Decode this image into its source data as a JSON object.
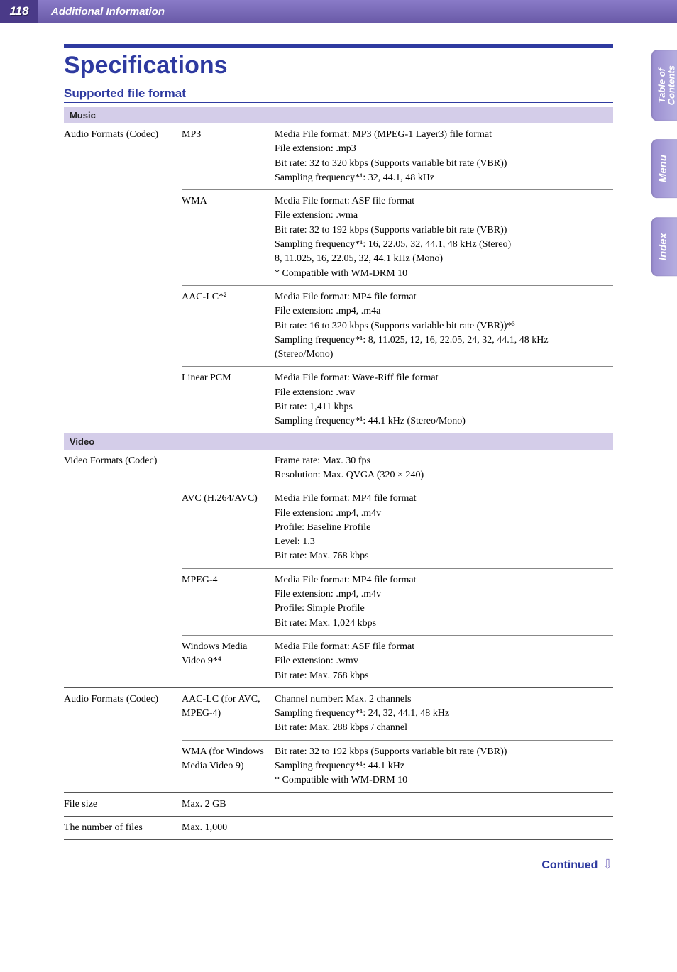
{
  "header": {
    "page_number": "118",
    "section": "Additional Information"
  },
  "side_tabs": [
    {
      "lines": [
        "Table of",
        "Contents"
      ],
      "two_line": true
    },
    {
      "lines": [
        "Menu"
      ],
      "two_line": false
    },
    {
      "lines": [
        "Index"
      ],
      "two_line": false
    }
  ],
  "title": "Specifications",
  "subheading": "Supported file format",
  "sections": [
    {
      "band": "Music",
      "rows": [
        {
          "a": "Audio Formats (Codec)",
          "b": "MP3",
          "c": "Media File format: MP3 (MPEG-1 Layer3) file format\nFile extension: .mp3\nBit rate: 32 to 320 kbps (Supports variable bit rate (VBR))\nSampling frequency*¹: 32, 44.1, 48 kHz",
          "top_rule": false
        },
        {
          "a": "",
          "b": "WMA",
          "c": "Media File format: ASF file format\nFile extension: .wma\nBit rate: 32 to 192 kbps (Supports variable bit rate (VBR))\nSampling frequency*¹: 16, 22.05, 32, 44.1, 48 kHz (Stereo)\n    8, 11.025, 16, 22.05, 32, 44.1 kHz (Mono)\n* Compatible with WM-DRM 10",
          "top_rule": true
        },
        {
          "a": "",
          "b": "AAC-LC*²",
          "c": "Media File format: MP4 file format\nFile extension: .mp4, .m4a\nBit rate: 16 to 320 kbps (Supports variable bit rate (VBR))*³\nSampling frequency*¹: 8, 11.025, 12, 16, 22.05, 24, 32, 44.1, 48 kHz (Stereo/Mono)",
          "top_rule": true
        },
        {
          "a": "",
          "b": "Linear PCM",
          "c": "Media File format: Wave-Riff file format\nFile extension: .wav\nBit rate: 1,411 kbps\nSampling frequency*¹: 44.1 kHz (Stereo/Mono)",
          "top_rule": true
        }
      ]
    },
    {
      "band": "Video",
      "rows": [
        {
          "a": "Video Formats (Codec)",
          "b": "",
          "c": "Frame rate: Max. 30 fps\nResolution: Max. QVGA (320 × 240)",
          "top_rule": false
        },
        {
          "a": "",
          "b": "AVC (H.264/AVC)",
          "c": "Media File format: MP4 file format\nFile extension: .mp4, .m4v\nProfile: Baseline Profile\nLevel: 1.3\nBit rate: Max. 768 kbps",
          "top_rule": true
        },
        {
          "a": "",
          "b": "MPEG-4",
          "c": "Media File format: MP4 file format\nFile extension: .mp4, .m4v\nProfile: Simple Profile\nBit rate: Max. 1,024 kbps",
          "top_rule": true
        },
        {
          "a": "",
          "b": "Windows Media Video 9*⁴",
          "c": "Media File format: ASF file format\nFile extension: .wmv\nBit rate: Max. 768 kbps",
          "top_rule": true
        },
        {
          "a": "Audio Formats (Codec)",
          "b": "AAC-LC (for AVC, MPEG-4)",
          "c": "Channel number: Max. 2 channels\nSampling frequency*¹: 24, 32, 44.1, 48 kHz\nBit rate: Max. 288 kbps / channel",
          "top_rule": true,
          "heavy": true
        },
        {
          "a": "",
          "b": "WMA (for Windows Media Video 9)",
          "c": "Bit rate: 32 to 192 kbps (Supports variable bit rate (VBR))\nSampling frequency*¹: 44.1 kHz\n* Compatible with WM-DRM 10",
          "top_rule": true
        },
        {
          "a": "File size",
          "b": "Max. 2 GB",
          "c": "",
          "top_rule": true,
          "heavy": true
        },
        {
          "a": "The number of files",
          "b": "Max. 1,000",
          "c": "",
          "top_rule": true,
          "heavy": true,
          "bottom_rule": true
        }
      ]
    }
  ],
  "continued": "Continued"
}
